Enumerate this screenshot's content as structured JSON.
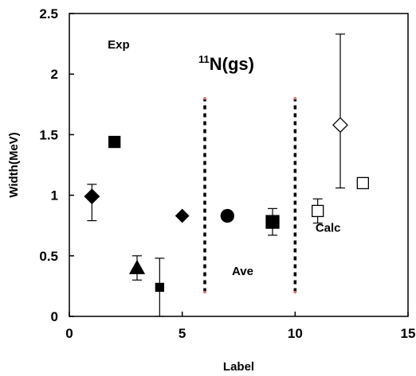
{
  "chart_data": {
    "type": "scatter",
    "title_sup": "11",
    "title_main": "N(gs)",
    "xlabel": "Label",
    "ylabel": "Width(MeV)",
    "xlim": [
      0,
      15
    ],
    "ylim": [
      0,
      2.5
    ],
    "x_ticks": [
      0,
      5,
      10,
      15
    ],
    "y_ticks": [
      0,
      0.5,
      1,
      1.5,
      2,
      2.5
    ],
    "grid": false,
    "legend": "none",
    "annotations": [
      {
        "text": "Exp",
        "x": 1.7,
        "y": 2.21
      },
      {
        "text": "Ave",
        "x": 7.2,
        "y": 0.34
      },
      {
        "text": "Calc",
        "x": 10.9,
        "y": 0.7
      }
    ],
    "divider_lines": [
      {
        "x": 6,
        "y_from": 0.2,
        "y_to": 1.8,
        "color": "#000000"
      },
      {
        "x": 10,
        "y_from": 0.2,
        "y_to": 1.8,
        "color": "#000000"
      }
    ],
    "points": [
      {
        "x": 1,
        "y": 0.99,
        "err_low": 0.2,
        "err_high": 0.1,
        "marker": "diamond",
        "filled": true,
        "size": 9
      },
      {
        "x": 2,
        "y": 1.44,
        "marker": "square",
        "filled": true,
        "size": 7
      },
      {
        "x": 3,
        "y": 0.4,
        "err_low": 0.1,
        "err_high": 0.1,
        "marker": "triangle",
        "filled": true,
        "size": 9
      },
      {
        "x": 4,
        "y": 0.24,
        "err_low": 0.24,
        "err_high": 0.24,
        "marker": "square",
        "filled": true,
        "size": 5
      },
      {
        "x": 5,
        "y": 0.83,
        "marker": "diamond",
        "filled": true,
        "size": 8
      },
      {
        "x": 7,
        "y": 0.83,
        "marker": "circle",
        "filled": true,
        "size": 8
      },
      {
        "x": 9,
        "y": 0.78,
        "err_low": 0.11,
        "err_high": 0.11,
        "marker": "square",
        "filled": true,
        "size": 8
      },
      {
        "x": 11,
        "y": 0.87,
        "err_low": 0.1,
        "err_high": 0.1,
        "marker": "square",
        "filled": false,
        "size": 7
      },
      {
        "x": 12,
        "y": 1.58,
        "err_low": 0.52,
        "err_high": 0.75,
        "marker": "diamond",
        "filled": false,
        "size": 9
      },
      {
        "x": 13,
        "y": 1.1,
        "marker": "square",
        "filled": false,
        "size": 7
      }
    ]
  }
}
